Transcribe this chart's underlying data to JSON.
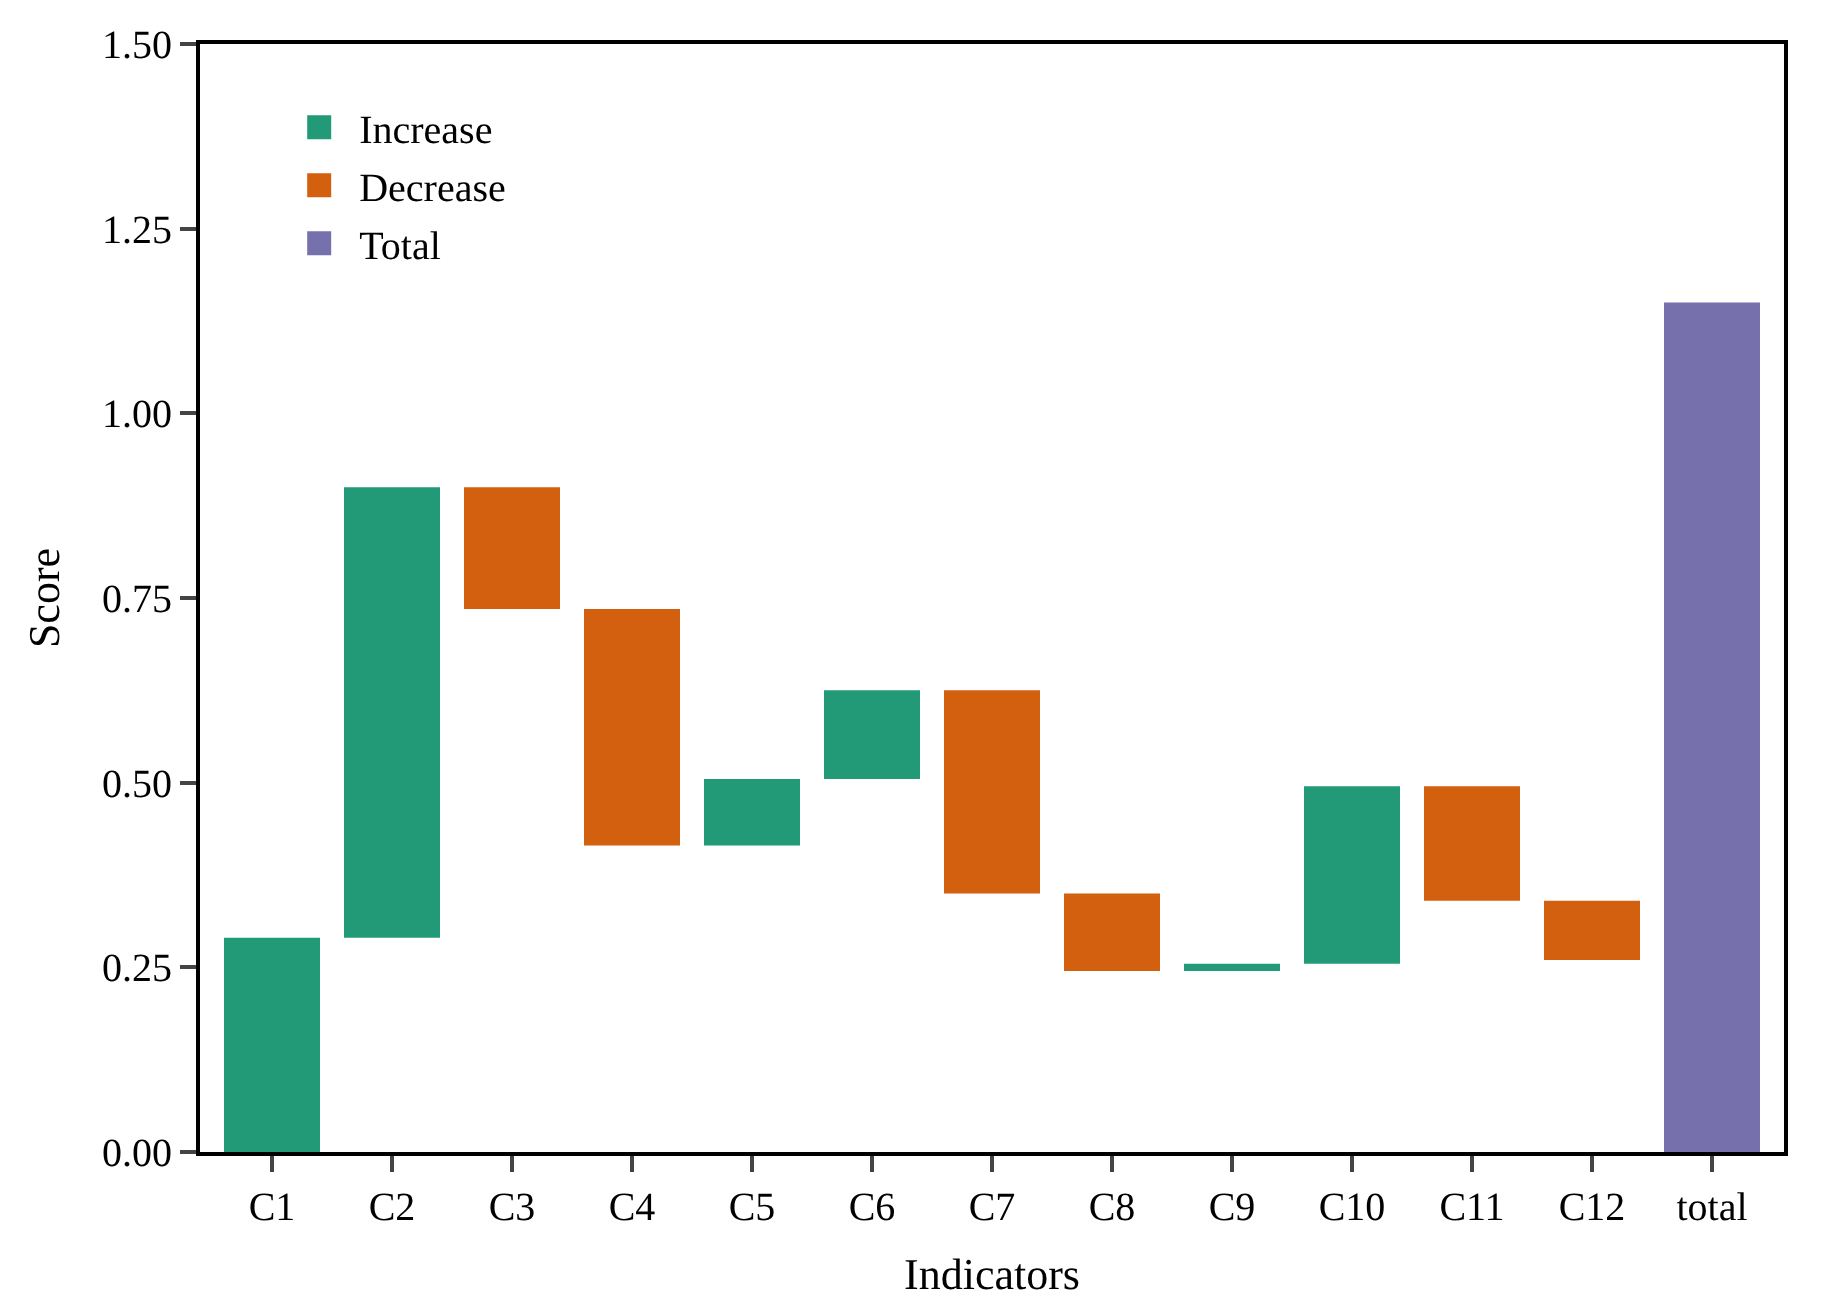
{
  "chart_data": {
    "type": "bar",
    "xlabel": "Indicators",
    "ylabel": "Score",
    "categories": [
      "C1",
      "C2",
      "C3",
      "C4",
      "C5",
      "C6",
      "C7",
      "C8",
      "C9",
      "C10",
      "C11",
      "C12",
      "total"
    ],
    "series": [
      {
        "name": "Increase",
        "color": "#229a78",
        "base": [
          0,
          0.29,
          null,
          null,
          0.415,
          0.505,
          null,
          null,
          0.245,
          0.255,
          null,
          null,
          null
        ],
        "values": [
          0.29,
          0.61,
          null,
          null,
          0.09,
          0.12,
          null,
          null,
          0.01,
          0.24,
          null,
          null,
          null
        ]
      },
      {
        "name": "Decrease",
        "color": "#d2600e",
        "base": [
          null,
          null,
          0.735,
          0.415,
          null,
          null,
          0.35,
          0.245,
          null,
          null,
          0.34,
          0.26,
          null
        ],
        "values": [
          null,
          null,
          0.165,
          0.32,
          null,
          null,
          0.275,
          0.105,
          null,
          null,
          0.155,
          0.08,
          null
        ]
      },
      {
        "name": "Total",
        "color": "#7670ad",
        "base": [
          null,
          null,
          null,
          null,
          null,
          null,
          null,
          null,
          null,
          null,
          null,
          null,
          0
        ],
        "values": [
          null,
          null,
          null,
          null,
          null,
          null,
          null,
          null,
          null,
          null,
          null,
          null,
          1.15
        ]
      }
    ],
    "ylim": [
      0,
      1.5
    ],
    "yticks": [
      {
        "value": 0,
        "label": "0.00"
      },
      {
        "value": 0.25,
        "label": "0.25"
      },
      {
        "value": 0.5,
        "label": "0.50"
      },
      {
        "value": 0.75,
        "label": "0.75"
      },
      {
        "value": 1,
        "label": "1.00"
      },
      {
        "value": 1.25,
        "label": "1.25"
      },
      {
        "value": 1.5,
        "label": "1.50"
      }
    ],
    "legend": "top left"
  }
}
